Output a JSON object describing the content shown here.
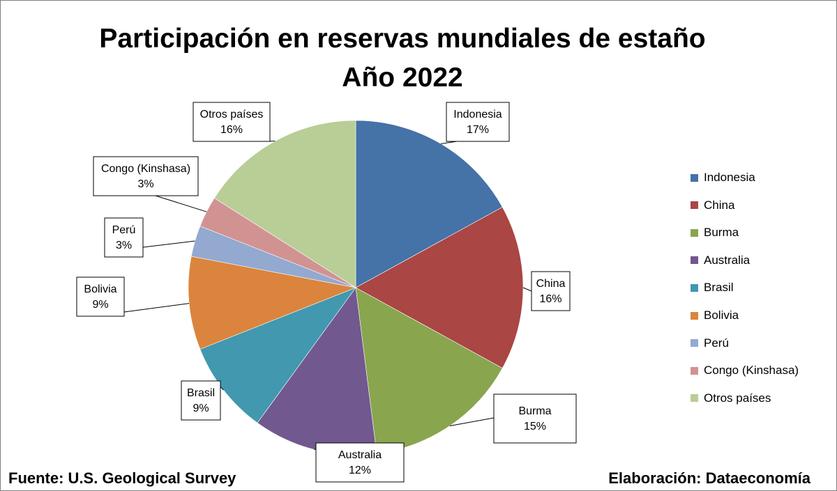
{
  "chart_data": {
    "type": "pie",
    "title": [
      "Participación en reservas mundiales de estaño",
      "Año 2022"
    ],
    "slices": [
      {
        "name": "Indonesia",
        "value": 17,
        "label": "17%",
        "color": "#4572A7"
      },
      {
        "name": "China",
        "value": 16,
        "label": "16%",
        "color": "#AA4643"
      },
      {
        "name": "Burma",
        "value": 15,
        "label": "15%",
        "color": "#89A54E"
      },
      {
        "name": "Australia",
        "value": 12,
        "label": "12%",
        "color": "#71588F"
      },
      {
        "name": "Brasil",
        "value": 9,
        "label": "9%",
        "color": "#4198AF"
      },
      {
        "name": "Bolivia",
        "value": 9,
        "label": "9%",
        "color": "#DB843D"
      },
      {
        "name": "Perú",
        "value": 3,
        "label": "3%",
        "color": "#93A9CF"
      },
      {
        "name": "Congo (Kinshasa)",
        "value": 3,
        "label": "3%",
        "color": "#D19392"
      },
      {
        "name": "Otros países",
        "value": 16,
        "label": "16%",
        "color": "#B9CD96"
      }
    ],
    "legend_position": "right"
  },
  "footer": {
    "source": "Fuente: U.S. Geological Survey",
    "credit": "Elaboración: Dataeconomía"
  }
}
